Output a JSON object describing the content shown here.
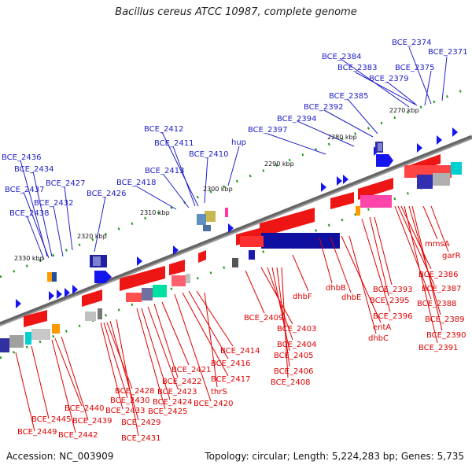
{
  "title": "Bacillus cereus ATCC 10987, complete genome",
  "footer": {
    "accession": "Accession: NC_003909",
    "topology": "Topology: circular; Length: 5,224,283 bp; Genes: 5,735"
  },
  "kbp_ticks": [
    "2270 kbp",
    "2280 kbp",
    "2290 kbp",
    "2300 kbp",
    "2310 kbp",
    "2320 kbp",
    "2330 kbp"
  ],
  "top_labels": [
    "BCE_2374",
    "BCE_2371",
    "BCE_2384",
    "BCE_2383",
    "BCE_2375",
    "BCE_2379",
    "BCE_2385",
    "BCE_2392",
    "BCE_2394",
    "BCE_2397",
    "hup",
    "BCE_2412",
    "BCE_2411",
    "BCE_2410",
    "BCE_2413",
    "BCE_2418",
    "BCE_2426",
    "BCE_2427",
    "BCE_2436",
    "BCE_2434",
    "BCE_2437",
    "BCE_2432",
    "BCE_2438"
  ],
  "bottom_labels": [
    "mmsA",
    "garR",
    "BCE_2386",
    "BCE_2387",
    "BCE_2388",
    "BCE_2389",
    "BCE_2390",
    "BCE_2391",
    "BCE_2393",
    "BCE_2395",
    "BCE_2396",
    "dhbF",
    "dhbB",
    "dhbE",
    "entA",
    "dhbC",
    "BCE_2409",
    "BCE_2403",
    "BCE_2404",
    "BCE_2405",
    "BCE_2406",
    "BCE_2408",
    "BCE_2414",
    "BCE_2416",
    "BCE_2417",
    "BCE_2421",
    "BCE_2422",
    "thrS",
    "BCE_2423",
    "BCE_2420",
    "BCE_2424",
    "BCE_2425",
    "BCE_2428",
    "BCE_2430",
    "BCE_2433",
    "BCE_2429",
    "BCE_2431",
    "BCE_2440",
    "BCE_2439",
    "BCE_2445",
    "BCE_2442",
    "BCE_2449"
  ],
  "colors": {
    "forward": "#1010ee",
    "reverse": "#ee1010",
    "backbone": "#777777",
    "tick": "#1a9a1a"
  }
}
